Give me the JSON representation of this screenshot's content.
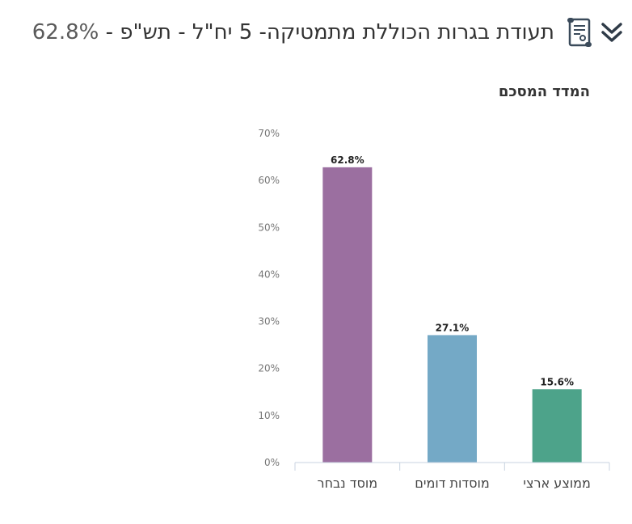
{
  "header": {
    "title": "תעודת בגרות הכוללת מתמטיקה- 5 יח\"ל - תש\"פ - ",
    "value": "62.8%",
    "doc_icon": "diploma-scroll-icon",
    "toggle_icon": "double-chevron-down-icon"
  },
  "colors": {
    "selected": "#9b6fa0",
    "similar": "#74a9c6",
    "national": "#4da38a",
    "axis": "#c8d3e0"
  },
  "chart_data": {
    "type": "bar",
    "title": "המדד המסכם",
    "categories": [
      "מוסד נבחר",
      "מוסדות דומים",
      "ממוצע ארצי"
    ],
    "values": [
      62.8,
      27.1,
      15.6
    ],
    "value_labels": [
      "62.8%",
      "27.1%",
      "15.6%"
    ],
    "y_ticks": [
      0,
      10,
      20,
      30,
      40,
      50,
      60,
      70
    ],
    "y_tick_labels": [
      "0%",
      "10%",
      "20%",
      "30%",
      "40%",
      "50%",
      "60%",
      "70%"
    ],
    "ylim": [
      0,
      70
    ],
    "xlabel": "",
    "ylabel": "",
    "grid": false,
    "legend": "none"
  }
}
